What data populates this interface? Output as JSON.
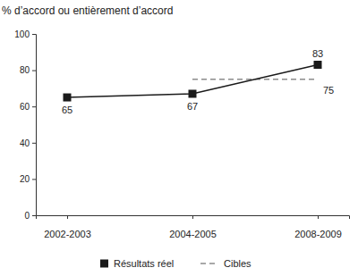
{
  "chart_data": {
    "type": "line",
    "y_label": "% d’accord ou entièrement d’accord",
    "categories": [
      "2002-2003",
      "2004-2005",
      "2008-2009"
    ],
    "series": [
      {
        "name": "Résultats réel",
        "color": "#1a1a1a",
        "values": [
          65,
          67,
          83
        ],
        "marker": "square",
        "line_style": "solid",
        "data_labels": true
      },
      {
        "name": "Cibles",
        "color": "#8c8c8c",
        "values": [
          null,
          75,
          75
        ],
        "marker": "none",
        "line_style": "dashed",
        "value_labels": [
          null,
          null,
          "75"
        ]
      }
    ],
    "ylim": [
      0,
      100
    ],
    "yticks": [
      0,
      20,
      40,
      60,
      80,
      100
    ],
    "grid": false,
    "legend": "bottom"
  }
}
